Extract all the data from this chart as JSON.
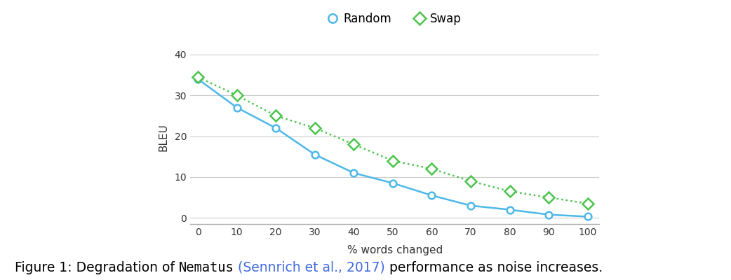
{
  "random_x": [
    0,
    10,
    20,
    30,
    40,
    50,
    60,
    70,
    80,
    90,
    100
  ],
  "random_y": [
    34.0,
    27.0,
    22.0,
    15.5,
    11.0,
    8.5,
    5.5,
    3.0,
    2.0,
    0.8,
    0.3
  ],
  "swap_x": [
    0,
    10,
    20,
    30,
    40,
    50,
    60,
    70,
    80,
    90,
    100
  ],
  "swap_y": [
    34.5,
    30.0,
    25.0,
    22.0,
    18.0,
    14.0,
    12.0,
    9.0,
    6.5,
    5.0,
    3.5
  ],
  "random_color": "#4db8e8",
  "swap_color": "#4dc44d",
  "xlabel": "% words changed",
  "ylabel": "BLEU",
  "xlim": [
    -2,
    103
  ],
  "ylim": [
    -1.5,
    41
  ],
  "xticks": [
    0,
    10,
    20,
    30,
    40,
    50,
    60,
    70,
    80,
    90,
    100
  ],
  "yticks": [
    0,
    10,
    20,
    30,
    40
  ],
  "caption_normal1": "Figure 1: Degradation of ",
  "caption_mono": "Nematus",
  "caption_link": " (Sennrich et al., 2017)",
  "caption_end": " performance as noise increases.",
  "link_color": "#4169e1",
  "caption_fontsize": 13.5,
  "legend_fontsize": 12,
  "axis_fontsize": 11,
  "tick_fontsize": 10
}
